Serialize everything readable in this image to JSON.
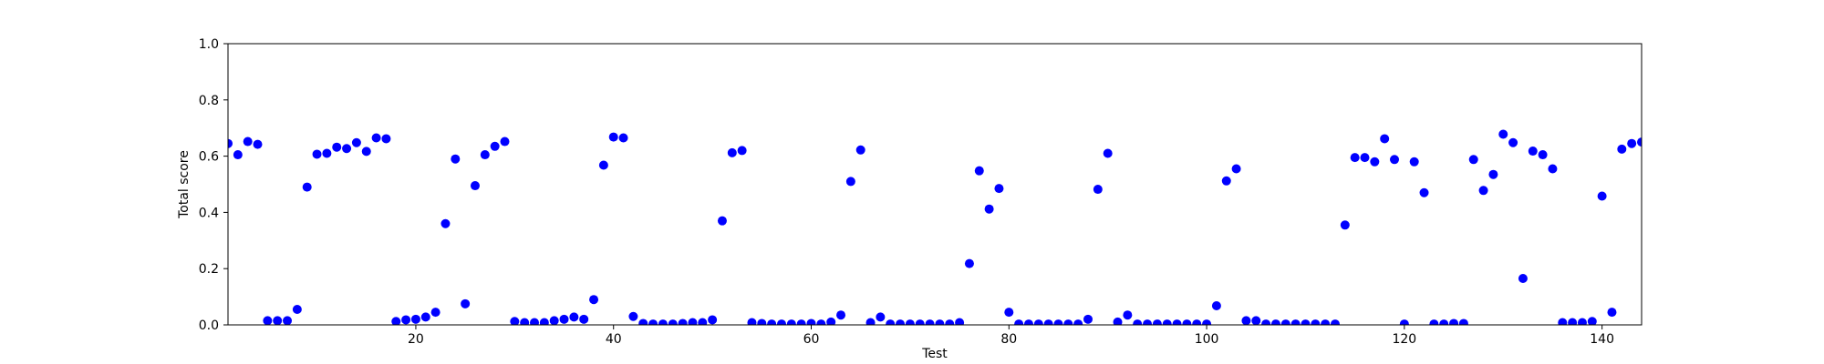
{
  "chart_data": {
    "type": "scatter",
    "title": "",
    "xlabel": "Test",
    "ylabel": "Total score",
    "xlim": [
      1,
      144
    ],
    "ylim": [
      0,
      1
    ],
    "xticks": [
      20,
      40,
      60,
      80,
      100,
      120,
      140
    ],
    "yticks": [
      0.0,
      0.2,
      0.4,
      0.6,
      0.8,
      1.0
    ],
    "xtick_labels": [
      "20",
      "40",
      "60",
      "80",
      "100",
      "120",
      "140"
    ],
    "ytick_labels": [
      "0.0",
      "0.2",
      "0.4",
      "0.6",
      "0.8",
      "1.0"
    ],
    "grid": false,
    "marker_color": "#0000ff",
    "series": [
      {
        "name": "Total score",
        "x": [
          1,
          2,
          3,
          4,
          5,
          6,
          7,
          8,
          9,
          10,
          11,
          12,
          13,
          14,
          15,
          16,
          17,
          18,
          19,
          20,
          21,
          22,
          23,
          24,
          25,
          26,
          27,
          28,
          29,
          30,
          31,
          32,
          33,
          34,
          35,
          36,
          37,
          38,
          39,
          40,
          41,
          42,
          43,
          44,
          45,
          46,
          47,
          48,
          49,
          50,
          51,
          52,
          53,
          54,
          55,
          56,
          57,
          58,
          59,
          60,
          61,
          62,
          63,
          64,
          65,
          66,
          67,
          68,
          69,
          70,
          71,
          72,
          73,
          74,
          75,
          76,
          77,
          78,
          79,
          80,
          81,
          82,
          83,
          84,
          85,
          86,
          87,
          88,
          89,
          90,
          91,
          92,
          93,
          94,
          95,
          96,
          97,
          98,
          99,
          100,
          101,
          102,
          103,
          104,
          105,
          106,
          107,
          108,
          109,
          110,
          111,
          112,
          113,
          114,
          115,
          116,
          117,
          118,
          119,
          120,
          121,
          122,
          123,
          124,
          125,
          126,
          127,
          128,
          129,
          130,
          131,
          132,
          133,
          134,
          135,
          136,
          137,
          138,
          139,
          140,
          141,
          142,
          143,
          144
        ],
        "y": [
          0.645,
          0.605,
          0.652,
          0.642,
          0.015,
          0.015,
          0.015,
          0.055,
          0.49,
          0.607,
          0.61,
          0.632,
          0.627,
          0.648,
          0.617,
          0.665,
          0.662,
          0.012,
          0.018,
          0.02,
          0.028,
          0.045,
          0.36,
          0.59,
          0.075,
          0.495,
          0.605,
          0.635,
          0.652,
          0.012,
          0.008,
          0.008,
          0.008,
          0.015,
          0.02,
          0.028,
          0.02,
          0.09,
          0.568,
          0.668,
          0.665,
          0.03,
          0.005,
          0.003,
          0.003,
          0.003,
          0.005,
          0.008,
          0.008,
          0.018,
          0.37,
          0.612,
          0.62,
          0.008,
          0.005,
          0.003,
          0.003,
          0.003,
          0.003,
          0.005,
          0.003,
          0.01,
          0.035,
          0.51,
          0.622,
          0.008,
          0.028,
          0.003,
          0.003,
          0.003,
          0.003,
          0.003,
          0.003,
          0.003,
          0.008,
          0.218,
          0.548,
          0.412,
          0.485,
          0.045,
          0.003,
          0.003,
          0.003,
          0.003,
          0.003,
          0.003,
          0.003,
          0.02,
          0.482,
          0.61,
          0.01,
          0.035,
          0.003,
          0.003,
          0.003,
          0.003,
          0.003,
          0.003,
          0.003,
          0.003,
          0.068,
          0.512,
          0.555,
          0.015,
          0.015,
          0.003,
          0.003,
          0.003,
          0.003,
          0.003,
          0.003,
          0.003,
          0.003,
          0.355,
          0.595,
          0.595,
          0.58,
          0.662,
          0.588,
          0.003,
          0.58,
          0.47,
          0.003,
          0.003,
          0.005,
          0.005,
          0.588,
          0.478,
          0.535,
          0.678,
          0.648,
          0.165,
          0.618,
          0.605,
          0.555,
          0.008,
          0.008,
          0.008,
          0.012,
          0.458,
          0.045,
          0.625,
          0.645,
          0.65
        ]
      }
    ]
  }
}
